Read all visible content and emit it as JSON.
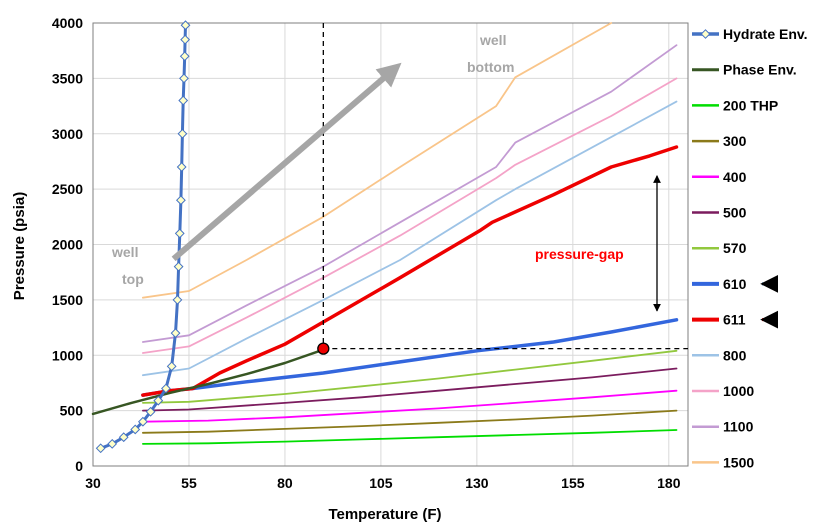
{
  "chart_data": {
    "type": "line",
    "xlabel": "Temperature (F)",
    "ylabel": "Pressure (psia)",
    "xlim": [
      30,
      185
    ],
    "ylim": [
      0,
      4000
    ],
    "xticks": [
      "30",
      "55",
      "80",
      "105",
      "130",
      "155",
      "180"
    ],
    "yticks": [
      "0",
      "500",
      "1000",
      "1500",
      "2000",
      "2500",
      "3000",
      "3500",
      "4000"
    ],
    "grid": true,
    "legend_position": "right",
    "series": [
      {
        "name": "Hydrate Env.",
        "color": "#4472c4",
        "marker": "diamond",
        "x": [
          32,
          35,
          38,
          41,
          43,
          45,
          47,
          49,
          50.5,
          51.5,
          52,
          52.3,
          52.6,
          52.9,
          53.1,
          53.3,
          53.5,
          53.7,
          53.9,
          54.0,
          54.1
        ],
        "y": [
          160,
          200,
          260,
          330,
          400,
          490,
          590,
          700,
          900,
          1200,
          1500,
          1800,
          2100,
          2400,
          2700,
          3000,
          3300,
          3500,
          3700,
          3850,
          3980
        ]
      },
      {
        "name": "Phase Env.",
        "color": "#375623",
        "x": [
          30,
          40,
          50,
          60,
          70,
          80,
          90
        ],
        "y": [
          470,
          570,
          660,
          740,
          830,
          930,
          1050
        ]
      },
      {
        "name": "200 THP",
        "color": "#00dd00",
        "x": [
          43,
          60,
          80,
          100,
          120,
          140,
          160,
          182
        ],
        "y": [
          200,
          205,
          220,
          240,
          260,
          280,
          300,
          325
        ]
      },
      {
        "name": "300",
        "color": "#8b7a1a",
        "x": [
          43,
          60,
          80,
          100,
          120,
          140,
          160,
          182
        ],
        "y": [
          300,
          310,
          335,
          360,
          390,
          420,
          455,
          500
        ]
      },
      {
        "name": "400",
        "color": "#ff00ff",
        "x": [
          43,
          60,
          80,
          100,
          120,
          140,
          160,
          182
        ],
        "y": [
          400,
          410,
          440,
          480,
          520,
          570,
          620,
          680
        ]
      },
      {
        "name": "500",
        "color": "#7b1c5e",
        "x": [
          43,
          55,
          80,
          100,
          120,
          140,
          160,
          182
        ],
        "y": [
          500,
          510,
          570,
          620,
          680,
          740,
          800,
          880
        ]
      },
      {
        "name": "570",
        "color": "#92c83e",
        "x": [
          43,
          55,
          80,
          100,
          120,
          140,
          160,
          182
        ],
        "y": [
          570,
          580,
          650,
          720,
          790,
          870,
          950,
          1040
        ]
      },
      {
        "name": "610",
        "color": "#3366dd",
        "x": [
          43,
          50,
          56,
          70,
          90,
          110,
          130,
          150,
          165,
          182
        ],
        "y": [
          640,
          680,
          700,
          760,
          840,
          940,
          1040,
          1120,
          1210,
          1320
        ]
      },
      {
        "name": "611",
        "color": "#ee0000",
        "x": [
          43,
          50,
          56,
          63,
          70,
          80,
          90,
          110,
          131,
          134,
          150,
          165,
          175,
          182
        ],
        "y": [
          640,
          680,
          700,
          840,
          950,
          1100,
          1300,
          1700,
          2130,
          2200,
          2450,
          2700,
          2800,
          2880
        ]
      },
      {
        "name": "800",
        "color": "#9dc3e6",
        "x": [
          43,
          55,
          70,
          90,
          110,
          135,
          140,
          165,
          182
        ],
        "y": [
          820,
          880,
          1150,
          1500,
          1860,
          2400,
          2500,
          2970,
          3290
        ]
      },
      {
        "name": "1000",
        "color": "#f4a3c8",
        "x": [
          43,
          55,
          70,
          90,
          110,
          135,
          140,
          165,
          182
        ],
        "y": [
          1020,
          1080,
          1340,
          1700,
          2080,
          2600,
          2720,
          3160,
          3500
        ]
      },
      {
        "name": "1100",
        "color": "#c39bd3",
        "x": [
          43,
          55,
          70,
          90,
          110,
          135,
          140,
          165,
          182
        ],
        "y": [
          1120,
          1180,
          1450,
          1800,
          2200,
          2700,
          2920,
          3380,
          3800
        ]
      },
      {
        "name": "1500",
        "color": "#f9c58a",
        "x": [
          43,
          55,
          70,
          90,
          110,
          135,
          140,
          165
        ],
        "y": [
          1520,
          1580,
          1860,
          2250,
          2700,
          3250,
          3510,
          4000
        ]
      }
    ],
    "operating_point": {
      "x": 90,
      "y": 1060
    },
    "annotations": {
      "well_top": [
        "well",
        "top"
      ],
      "well_bottom": [
        "well",
        "bottom"
      ],
      "pressure_gap": "pressure-gap"
    }
  }
}
